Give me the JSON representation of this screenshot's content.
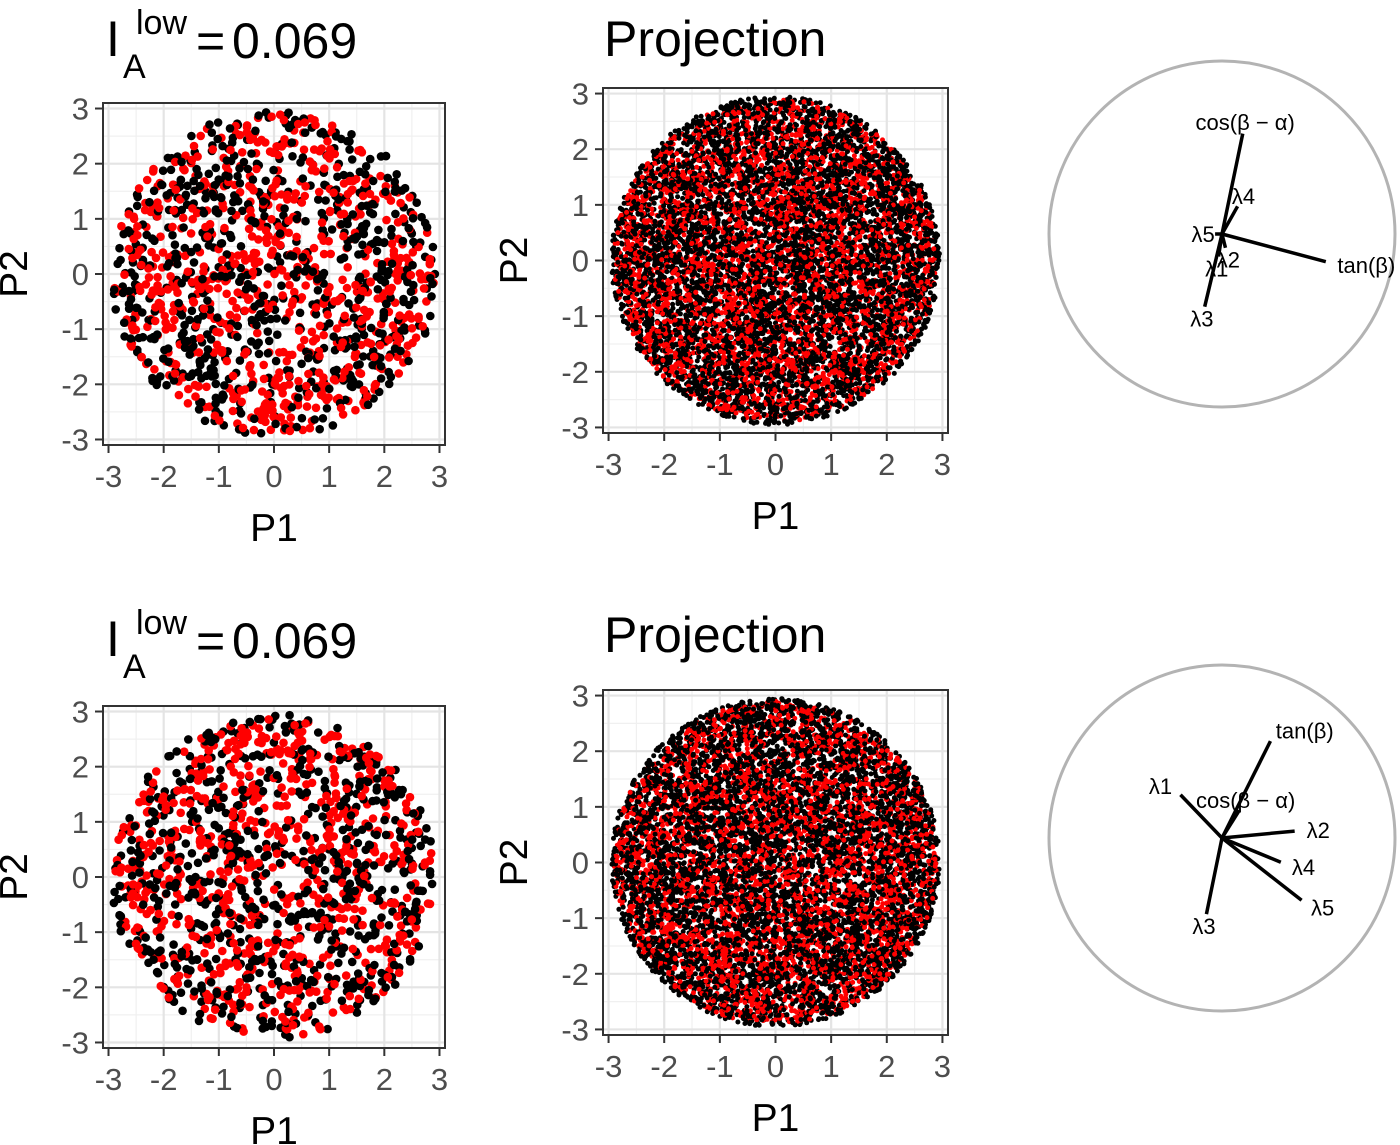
{
  "chart_data": [
    {
      "type": "scatter",
      "title": {
        "prefix": "I",
        "superscript": "low",
        "subscript": "A",
        "equals": "=",
        "value": "0.069"
      },
      "xlabel": "P1",
      "ylabel": "P2",
      "xlim": [
        -3.1,
        3.1
      ],
      "ylim": [
        -3.1,
        3.1
      ],
      "xticks": [
        "-3",
        "-2",
        "-1",
        "0",
        "1",
        "2",
        "3"
      ],
      "yticks": [
        "-3",
        "-2",
        "-1",
        "0",
        "1",
        "2",
        "3"
      ],
      "tick_values": [
        -3,
        -2,
        -1,
        0,
        1,
        2,
        3
      ],
      "grid": true,
      "series": [
        {
          "color": "#000000",
          "count": 700,
          "radius_max": 2.95
        },
        {
          "color": "#ff0000",
          "count": 700,
          "radius_max": 2.9
        }
      ]
    },
    {
      "type": "scatter",
      "title": "Projection",
      "xlabel": "P1",
      "ylabel": "P2",
      "xlim": [
        -3.1,
        3.1
      ],
      "ylim": [
        -3.1,
        3.1
      ],
      "xticks": [
        "-3",
        "-2",
        "-1",
        "0",
        "1",
        "2",
        "3"
      ],
      "yticks": [
        "-3",
        "-2",
        "-1",
        "0",
        "1",
        "2",
        "3"
      ],
      "tick_values": [
        -3,
        -2,
        -1,
        0,
        1,
        2,
        3
      ],
      "grid": true,
      "series": [
        {
          "color": "#000000",
          "count": 6000,
          "radius_max": 2.95
        },
        {
          "color": "#ff0000",
          "count": 3500,
          "radius_max": 2.9
        }
      ]
    },
    {
      "type": "biplot",
      "axes": [
        {
          "label": "cos(β − α)",
          "x": 0.12,
          "y": 0.58
        },
        {
          "label": "tan(β)",
          "x": 0.6,
          "y": -0.16
        },
        {
          "label": "λ4",
          "x": 0.09,
          "y": 0.16
        },
        {
          "label": "λ5",
          "x": -0.04,
          "y": 0.0
        },
        {
          "label": "λ2",
          "x": 0.02,
          "y": -0.08
        },
        {
          "label": "λ1",
          "x": -0.02,
          "y": -0.13
        },
        {
          "label": "λ3",
          "x": -0.1,
          "y": -0.42
        }
      ],
      "circle_color": "#b3b3b3"
    },
    {
      "type": "scatter",
      "title": {
        "prefix": "I",
        "superscript": "low",
        "subscript": "A",
        "equals": "=",
        "value": "0.069"
      },
      "xlabel": "P1",
      "ylabel": "P2",
      "xlim": [
        -3.1,
        3.1
      ],
      "ylim": [
        -3.1,
        3.1
      ],
      "xticks": [
        "-3",
        "-2",
        "-1",
        "0",
        "1",
        "2",
        "3"
      ],
      "yticks": [
        "-3",
        "-2",
        "-1",
        "0",
        "1",
        "2",
        "3"
      ],
      "tick_values": [
        -3,
        -2,
        -1,
        0,
        1,
        2,
        3
      ],
      "grid": true,
      "series": [
        {
          "color": "#000000",
          "count": 700,
          "radius_max": 2.95
        },
        {
          "color": "#ff0000",
          "count": 700,
          "radius_max": 2.9
        }
      ]
    },
    {
      "type": "scatter",
      "title": "Projection",
      "xlabel": "P1",
      "ylabel": "P2",
      "xlim": [
        -3.1,
        3.1
      ],
      "ylim": [
        -3.1,
        3.1
      ],
      "xticks": [
        "-3",
        "-2",
        "-1",
        "0",
        "1",
        "2",
        "3"
      ],
      "yticks": [
        "-3",
        "-2",
        "-1",
        "0",
        "1",
        "2",
        "3"
      ],
      "tick_values": [
        -3,
        -2,
        -1,
        0,
        1,
        2,
        3
      ],
      "grid": true,
      "series": [
        {
          "color": "#000000",
          "count": 6000,
          "radius_max": 2.95
        },
        {
          "color": "#ff0000",
          "count": 3500,
          "radius_max": 2.9
        }
      ]
    },
    {
      "type": "biplot",
      "axes": [
        {
          "label": "tan(β)",
          "x": 0.28,
          "y": 0.56
        },
        {
          "label": "λ1",
          "x": -0.24,
          "y": 0.25
        },
        {
          "label": "cos(β − α)",
          "x": 0.1,
          "y": 0.16
        },
        {
          "label": "λ2",
          "x": 0.42,
          "y": 0.04
        },
        {
          "label": "λ4",
          "x": 0.34,
          "y": -0.14
        },
        {
          "label": "λ5",
          "x": 0.46,
          "y": -0.36
        },
        {
          "label": "λ3",
          "x": -0.09,
          "y": -0.44
        }
      ],
      "circle_color": "#b3b3b3"
    }
  ]
}
